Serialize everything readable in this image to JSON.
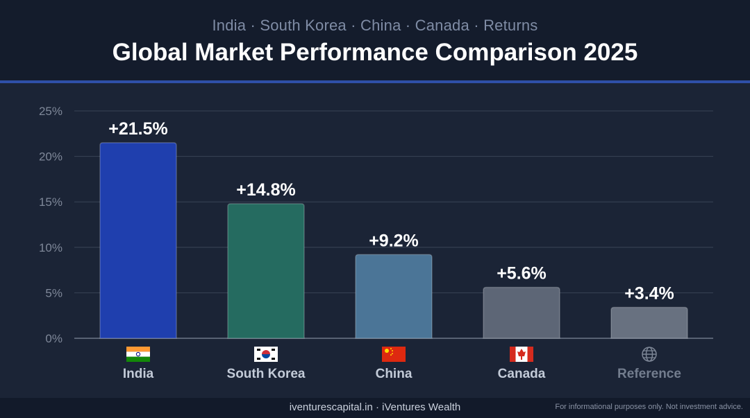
{
  "header": {
    "subtitle": "India · South Korea · China · Canada · Returns",
    "title": "Global Market Performance Comparison 2025"
  },
  "footer": {
    "site": "iventurescapital.in · iVentures Wealth",
    "disclaimer": "For informational purposes only. Not investment advice."
  },
  "chart_data": {
    "type": "bar",
    "categories": [
      "India",
      "South Korea",
      "China",
      "Canada",
      "Reference"
    ],
    "values": [
      21.5,
      14.8,
      9.2,
      5.6,
      3.4
    ],
    "value_labels": [
      "+21.5%",
      "+14.8%",
      "+9.2%",
      "+5.6%",
      "+3.4%"
    ],
    "icons": [
      "india-flag-icon",
      "south-korea-flag-icon",
      "china-flag-icon",
      "canada-flag-icon",
      "globe-icon"
    ],
    "colors": [
      "#1f3fae",
      "#256b60",
      "#4b7597",
      "#5d6676",
      "#687180"
    ],
    "ylim": [
      0,
      25
    ],
    "yticks": [
      0,
      5,
      10,
      15,
      20,
      25
    ],
    "ytick_labels": [
      "0%",
      "5%",
      "10%",
      "15%",
      "20%",
      "25%"
    ],
    "grid": true,
    "xlabel": "",
    "ylabel": ""
  }
}
